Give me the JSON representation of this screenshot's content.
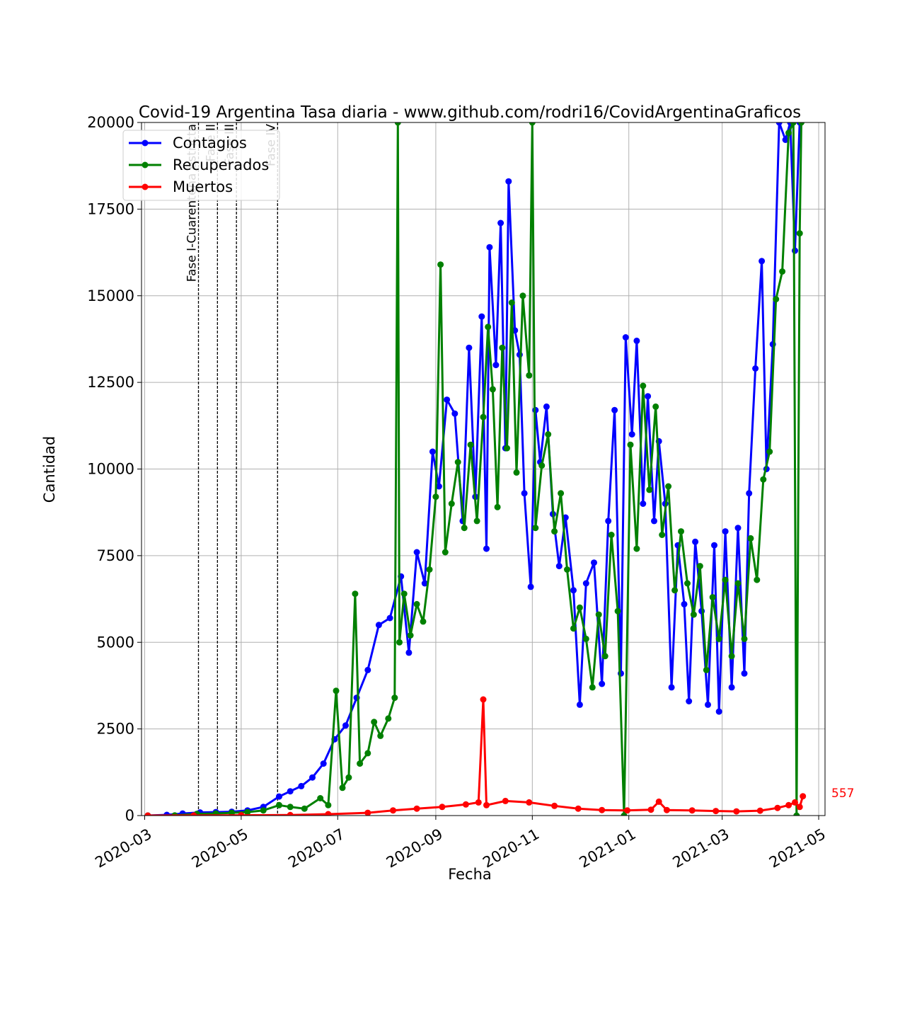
{
  "chart_data": {
    "type": "line",
    "title": "Covid-19 Argentina Tasa diaria - www.github.com/rodri16/CovidArgentinaGraficos",
    "xlabel": "Fecha",
    "ylabel": "Cantidad",
    "xlim": [
      "2020-02-28",
      "2021-05-05"
    ],
    "ylim": [
      0,
      20000
    ],
    "grid": true,
    "legend_position": "top-left",
    "x_ticks": [
      "2020-03",
      "2020-05",
      "2020-07",
      "2020-09",
      "2020-11",
      "2021-01",
      "2021-03",
      "2021-05"
    ],
    "y_ticks": [
      "0",
      "2500",
      "5000",
      "7500",
      "10000",
      "12500",
      "15000",
      "17500",
      "20000"
    ],
    "phases": [
      {
        "date": "2020-04-04",
        "label": "Fase I-Cuarentena estricta"
      },
      {
        "date": "2020-04-16",
        "label": "Fase II"
      },
      {
        "date": "2020-04-28",
        "label": "Fase III"
      },
      {
        "date": "2020-05-24",
        "label": "Fase IV"
      }
    ],
    "end_label": {
      "value": "557",
      "date": "2021-04-23",
      "y": 557
    },
    "series": [
      {
        "name": "Contagios",
        "color": "#0000ff",
        "points": [
          [
            "2020-03-03",
            1
          ],
          [
            "2020-03-15",
            20
          ],
          [
            "2020-03-25",
            60
          ],
          [
            "2020-04-05",
            90
          ],
          [
            "2020-04-15",
            100
          ],
          [
            "2020-04-25",
            110
          ],
          [
            "2020-05-05",
            150
          ],
          [
            "2020-05-15",
            250
          ],
          [
            "2020-05-25",
            550
          ],
          [
            "2020-06-01",
            700
          ],
          [
            "2020-06-08",
            850
          ],
          [
            "2020-06-15",
            1100
          ],
          [
            "2020-06-22",
            1500
          ],
          [
            "2020-06-29",
            2200
          ],
          [
            "2020-07-06",
            2600
          ],
          [
            "2020-07-13",
            3400
          ],
          [
            "2020-07-20",
            4200
          ],
          [
            "2020-07-27",
            5500
          ],
          [
            "2020-08-03",
            5700
          ],
          [
            "2020-08-10",
            6900
          ],
          [
            "2020-08-15",
            4700
          ],
          [
            "2020-08-20",
            7600
          ],
          [
            "2020-08-25",
            6700
          ],
          [
            "2020-08-30",
            10500
          ],
          [
            "2020-09-03",
            9500
          ],
          [
            "2020-09-08",
            12000
          ],
          [
            "2020-09-13",
            11600
          ],
          [
            "2020-09-18",
            8500
          ],
          [
            "2020-09-22",
            13500
          ],
          [
            "2020-09-26",
            9200
          ],
          [
            "2020-09-30",
            14400
          ],
          [
            "2020-10-03",
            7700
          ],
          [
            "2020-10-05",
            16400
          ],
          [
            "2020-10-09",
            13000
          ],
          [
            "2020-10-12",
            17100
          ],
          [
            "2020-10-15",
            10600
          ],
          [
            "2020-10-17",
            18300
          ],
          [
            "2020-10-21",
            14000
          ],
          [
            "2020-10-24",
            13300
          ],
          [
            "2020-10-27",
            9300
          ],
          [
            "2020-10-31",
            6600
          ],
          [
            "2020-11-03",
            11700
          ],
          [
            "2020-11-06",
            10200
          ],
          [
            "2020-11-10",
            11800
          ],
          [
            "2020-11-14",
            8700
          ],
          [
            "2020-11-18",
            7200
          ],
          [
            "2020-11-22",
            8600
          ],
          [
            "2020-11-27",
            6500
          ],
          [
            "2020-12-01",
            3200
          ],
          [
            "2020-12-05",
            6700
          ],
          [
            "2020-12-10",
            7300
          ],
          [
            "2020-12-15",
            3800
          ],
          [
            "2020-12-19",
            8500
          ],
          [
            "2020-12-23",
            11700
          ],
          [
            "2020-12-27",
            4100
          ],
          [
            "2020-12-30",
            13800
          ],
          [
            "2021-01-03",
            11000
          ],
          [
            "2021-01-06",
            13700
          ],
          [
            "2021-01-10",
            9000
          ],
          [
            "2021-01-13",
            12100
          ],
          [
            "2021-01-17",
            8500
          ],
          [
            "2021-01-20",
            10800
          ],
          [
            "2021-01-24",
            9000
          ],
          [
            "2021-01-28",
            3700
          ],
          [
            "2021-02-01",
            7800
          ],
          [
            "2021-02-05",
            6100
          ],
          [
            "2021-02-08",
            3300
          ],
          [
            "2021-02-12",
            7900
          ],
          [
            "2021-02-16",
            5900
          ],
          [
            "2021-02-20",
            3200
          ],
          [
            "2021-02-24",
            7800
          ],
          [
            "2021-02-27",
            3000
          ],
          [
            "2021-03-03",
            8200
          ],
          [
            "2021-03-07",
            3700
          ],
          [
            "2021-03-11",
            8300
          ],
          [
            "2021-03-15",
            4100
          ],
          [
            "2021-03-18",
            9300
          ],
          [
            "2021-03-22",
            12900
          ],
          [
            "2021-03-26",
            16000
          ],
          [
            "2021-03-29",
            10000
          ],
          [
            "2021-04-02",
            13600
          ],
          [
            "2021-04-06",
            20000
          ],
          [
            "2021-04-10",
            19500
          ],
          [
            "2021-04-13",
            20000
          ],
          [
            "2021-04-16",
            16300
          ],
          [
            "2021-04-19",
            20000
          ]
        ]
      },
      {
        "name": "Recuperados",
        "color": "#008000",
        "points": [
          [
            "2020-03-03",
            0
          ],
          [
            "2020-03-20",
            5
          ],
          [
            "2020-04-03",
            50
          ],
          [
            "2020-04-15",
            60
          ],
          [
            "2020-04-25",
            80
          ],
          [
            "2020-05-05",
            100
          ],
          [
            "2020-05-15",
            150
          ],
          [
            "2020-05-25",
            300
          ],
          [
            "2020-06-01",
            250
          ],
          [
            "2020-06-10",
            200
          ],
          [
            "2020-06-20",
            500
          ],
          [
            "2020-06-25",
            300
          ],
          [
            "2020-06-30",
            3600
          ],
          [
            "2020-07-04",
            800
          ],
          [
            "2020-07-08",
            1100
          ],
          [
            "2020-07-12",
            6400
          ],
          [
            "2020-07-15",
            1500
          ],
          [
            "2020-07-20",
            1800
          ],
          [
            "2020-07-24",
            2700
          ],
          [
            "2020-07-28",
            2300
          ],
          [
            "2020-08-02",
            2800
          ],
          [
            "2020-08-06",
            3400
          ],
          [
            "2020-08-08",
            20000
          ],
          [
            "2020-08-09",
            5000
          ],
          [
            "2020-08-12",
            6400
          ],
          [
            "2020-08-16",
            5200
          ],
          [
            "2020-08-20",
            6100
          ],
          [
            "2020-08-24",
            5600
          ],
          [
            "2020-08-28",
            7100
          ],
          [
            "2020-09-01",
            9200
          ],
          [
            "2020-09-04",
            15900
          ],
          [
            "2020-09-07",
            7600
          ],
          [
            "2020-09-11",
            9000
          ],
          [
            "2020-09-15",
            10200
          ],
          [
            "2020-09-19",
            8300
          ],
          [
            "2020-09-23",
            10700
          ],
          [
            "2020-09-27",
            8500
          ],
          [
            "2020-10-01",
            11500
          ],
          [
            "2020-10-04",
            14100
          ],
          [
            "2020-10-07",
            12300
          ],
          [
            "2020-10-10",
            8900
          ],
          [
            "2020-10-13",
            13500
          ],
          [
            "2020-10-16",
            10600
          ],
          [
            "2020-10-19",
            14800
          ],
          [
            "2020-10-22",
            9900
          ],
          [
            "2020-10-26",
            15000
          ],
          [
            "2020-10-30",
            12700
          ],
          [
            "2020-11-01",
            20000
          ],
          [
            "2020-11-03",
            8300
          ],
          [
            "2020-11-07",
            10100
          ],
          [
            "2020-11-11",
            11000
          ],
          [
            "2020-11-15",
            8200
          ],
          [
            "2020-11-19",
            9300
          ],
          [
            "2020-11-23",
            7100
          ],
          [
            "2020-11-27",
            5400
          ],
          [
            "2020-12-01",
            6000
          ],
          [
            "2020-12-05",
            5100
          ],
          [
            "2020-12-09",
            3700
          ],
          [
            "2020-12-13",
            5800
          ],
          [
            "2020-12-17",
            4600
          ],
          [
            "2020-12-21",
            8100
          ],
          [
            "2020-12-25",
            5900
          ],
          [
            "2020-12-29",
            0
          ],
          [
            "2021-01-02",
            10700
          ],
          [
            "2021-01-06",
            7700
          ],
          [
            "2021-01-10",
            12400
          ],
          [
            "2021-01-14",
            9400
          ],
          [
            "2021-01-18",
            11800
          ],
          [
            "2021-01-22",
            8100
          ],
          [
            "2021-01-26",
            9500
          ],
          [
            "2021-01-30",
            6500
          ],
          [
            "2021-02-03",
            8200
          ],
          [
            "2021-02-07",
            6700
          ],
          [
            "2021-02-11",
            5800
          ],
          [
            "2021-02-15",
            7200
          ],
          [
            "2021-02-19",
            4200
          ],
          [
            "2021-02-23",
            6300
          ],
          [
            "2021-02-27",
            5100
          ],
          [
            "2021-03-03",
            6800
          ],
          [
            "2021-03-07",
            4600
          ],
          [
            "2021-03-11",
            6700
          ],
          [
            "2021-03-15",
            5100
          ],
          [
            "2021-03-19",
            8000
          ],
          [
            "2021-03-23",
            6800
          ],
          [
            "2021-03-27",
            9700
          ],
          [
            "2021-03-31",
            10500
          ],
          [
            "2021-04-04",
            14900
          ],
          [
            "2021-04-08",
            15700
          ],
          [
            "2021-04-12",
            19700
          ],
          [
            "2021-04-15",
            20000
          ],
          [
            "2021-04-17",
            0
          ],
          [
            "2021-04-19",
            16800
          ],
          [
            "2021-04-20",
            20000
          ]
        ]
      },
      {
        "name": "Muertos",
        "color": "#ff0000",
        "points": [
          [
            "2020-03-03",
            0
          ],
          [
            "2020-04-01",
            3
          ],
          [
            "2020-05-01",
            8
          ],
          [
            "2020-06-01",
            15
          ],
          [
            "2020-06-25",
            40
          ],
          [
            "2020-07-20",
            80
          ],
          [
            "2020-08-05",
            150
          ],
          [
            "2020-08-20",
            200
          ],
          [
            "2020-09-05",
            250
          ],
          [
            "2020-09-20",
            320
          ],
          [
            "2020-09-28",
            380
          ],
          [
            "2020-10-01",
            3350
          ],
          [
            "2020-10-03",
            300
          ],
          [
            "2020-10-15",
            420
          ],
          [
            "2020-10-30",
            380
          ],
          [
            "2020-11-15",
            280
          ],
          [
            "2020-11-30",
            200
          ],
          [
            "2020-12-15",
            160
          ],
          [
            "2020-12-31",
            150
          ],
          [
            "2021-01-15",
            170
          ],
          [
            "2021-01-20",
            400
          ],
          [
            "2021-01-25",
            160
          ],
          [
            "2021-02-10",
            150
          ],
          [
            "2021-02-25",
            130
          ],
          [
            "2021-03-10",
            120
          ],
          [
            "2021-03-25",
            140
          ],
          [
            "2021-04-05",
            220
          ],
          [
            "2021-04-12",
            300
          ],
          [
            "2021-04-16",
            380
          ],
          [
            "2021-04-19",
            250
          ],
          [
            "2021-04-21",
            557
          ]
        ]
      }
    ]
  }
}
